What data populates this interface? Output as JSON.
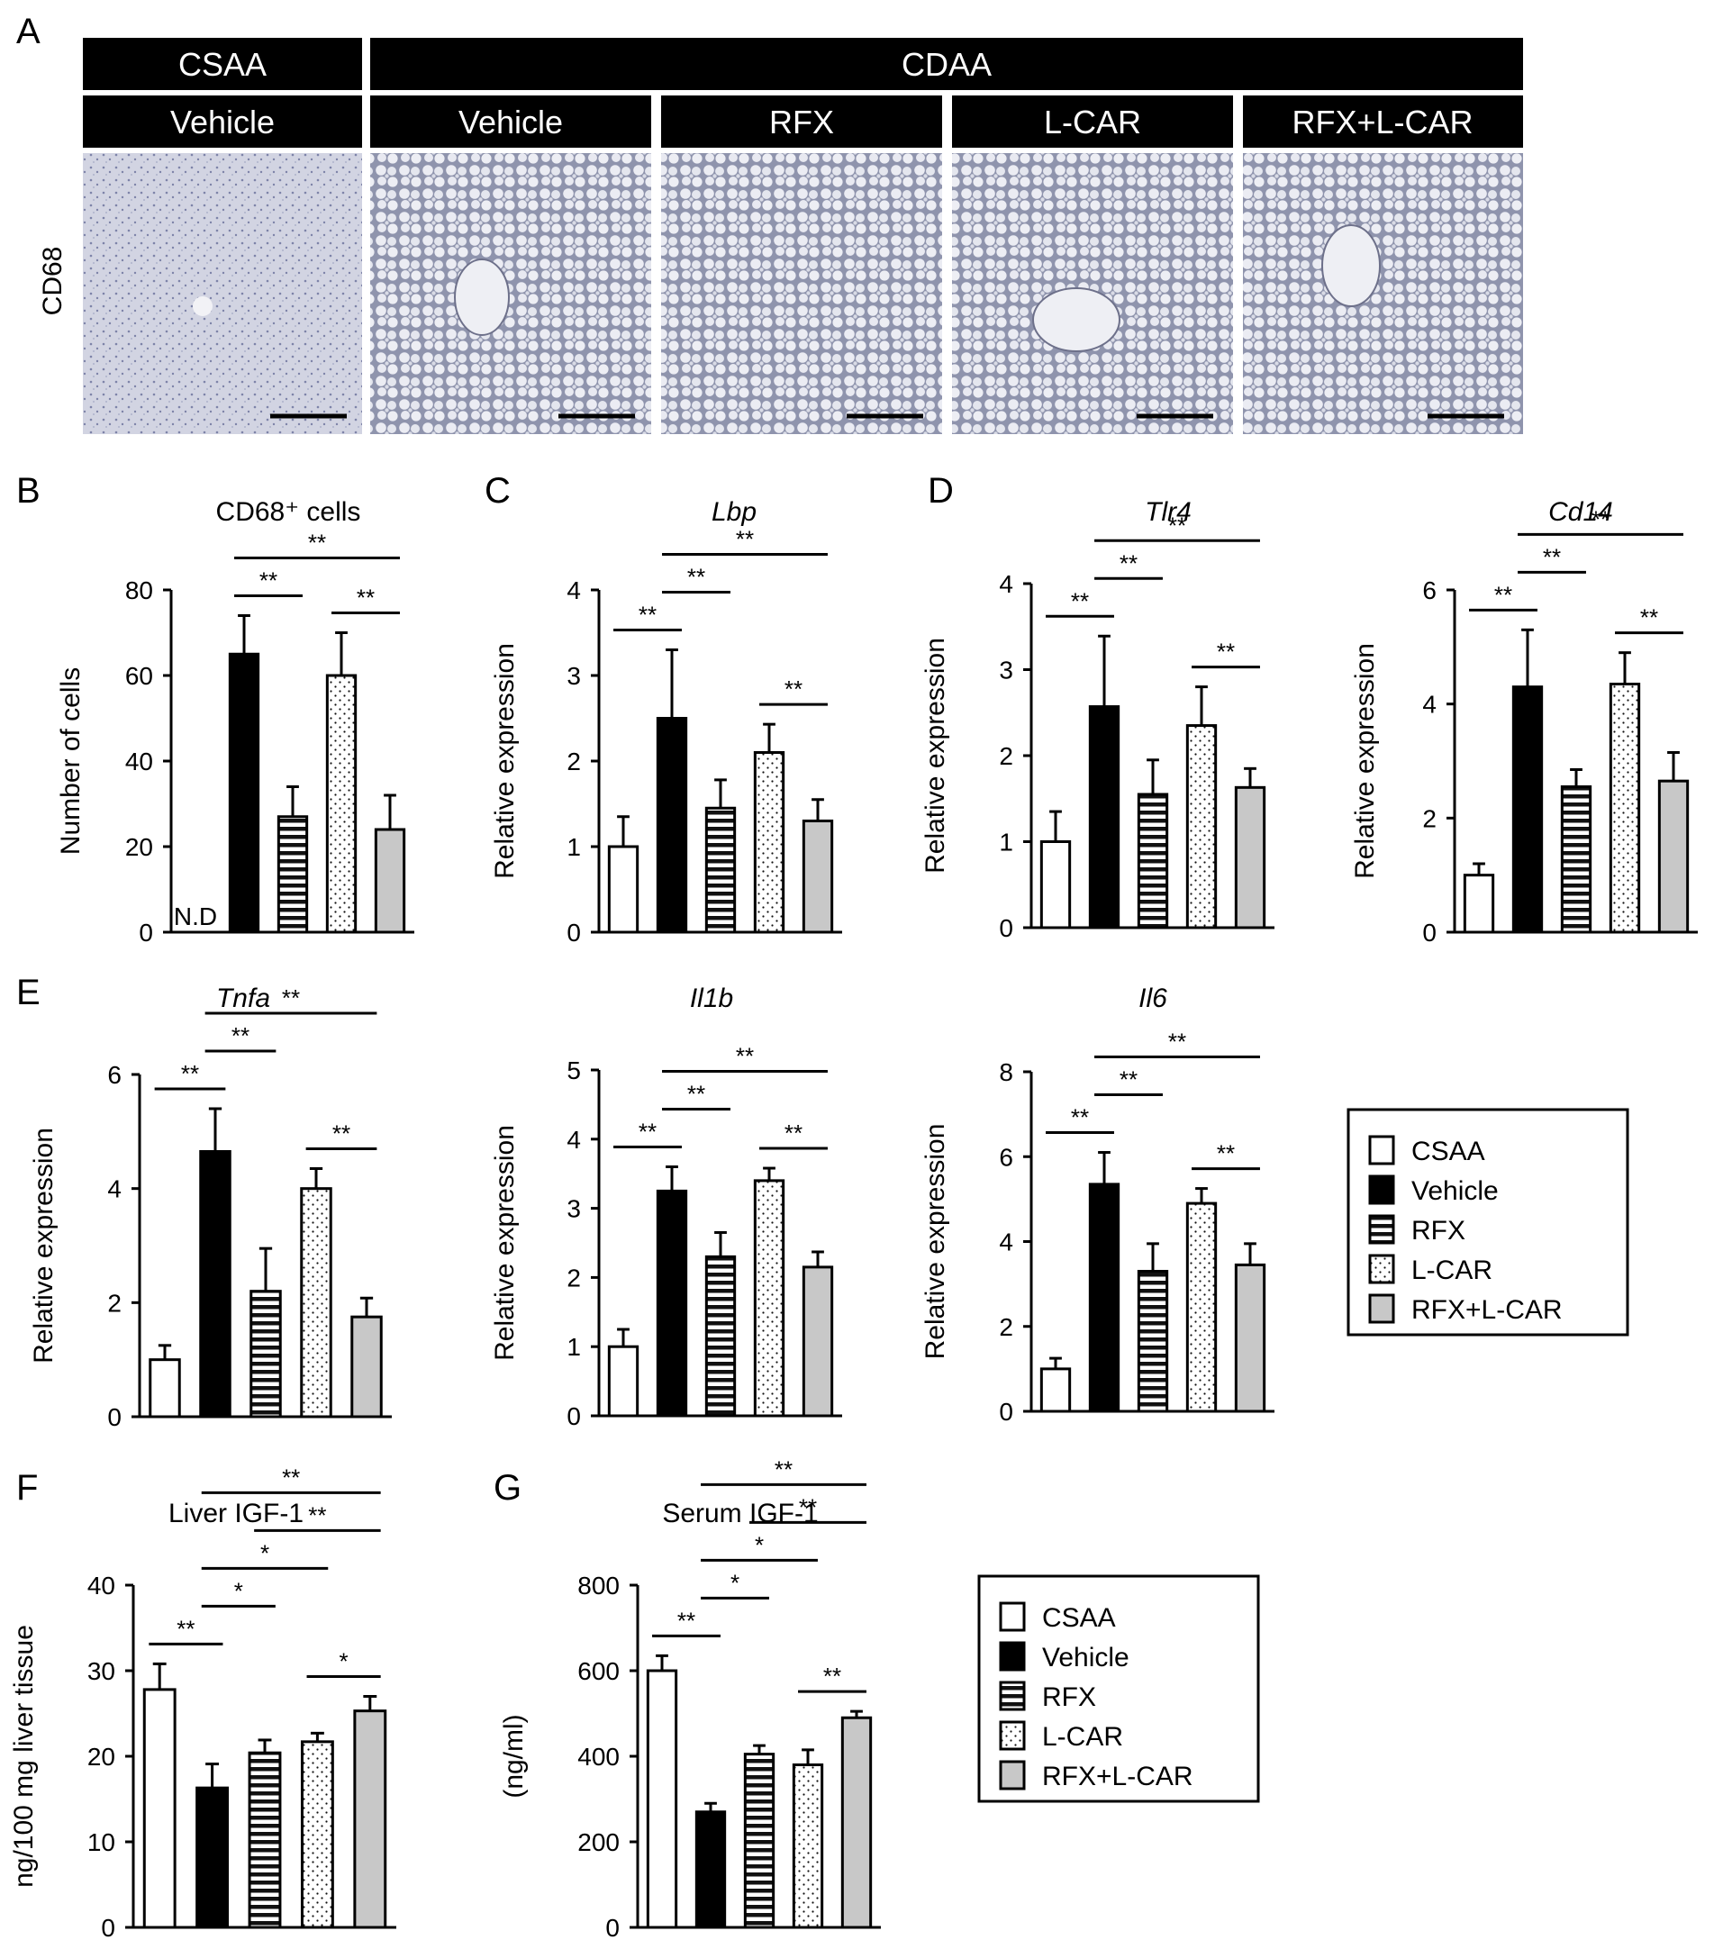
{
  "panel_letters": {
    "A": "A",
    "B": "B",
    "C": "C",
    "D": "D",
    "E": "E",
    "F": "F",
    "G": "G"
  },
  "panel_a": {
    "header_top": [
      "CSAA",
      "CDAA"
    ],
    "header_groups": [
      "Vehicle",
      "Vehicle",
      "RFX",
      "L-CAR",
      "RFX+L-CAR"
    ],
    "row_label": "CD68"
  },
  "legend": {
    "items": [
      {
        "label": "CSAA",
        "pattern": "white"
      },
      {
        "label": "Vehicle",
        "pattern": "black"
      },
      {
        "label": "RFX",
        "pattern": "hstripe"
      },
      {
        "label": "L-CAR",
        "pattern": "dots"
      },
      {
        "label": "RFX+L-CAR",
        "pattern": "gray"
      }
    ]
  },
  "chart_data": [
    {
      "id": "cd68",
      "type": "bar",
      "title": "CD68⁺ cells",
      "title_italic": false,
      "ylabel": "Number of cells",
      "ylim": [
        0,
        80
      ],
      "yticks": [
        0,
        20,
        40,
        60,
        80
      ],
      "categories": [
        "CSAA",
        "Vehicle",
        "RFX",
        "L-CAR",
        "RFX+L-CAR"
      ],
      "values": [
        null,
        65,
        27,
        60,
        24
      ],
      "errors": [
        null,
        9,
        7,
        10,
        8
      ],
      "annotations": [
        "N.D"
      ],
      "significance": [
        {
          "from": 1,
          "to": 2,
          "label": "**"
        },
        {
          "from": 1,
          "to": 4,
          "label": "**"
        },
        {
          "from": 3,
          "to": 4,
          "label": "**"
        }
      ]
    },
    {
      "id": "lbp",
      "type": "bar",
      "title": "Lbp",
      "title_italic": true,
      "ylabel": "Relative expression",
      "ylim": [
        0,
        4
      ],
      "yticks": [
        0,
        1,
        2,
        3,
        4
      ],
      "categories": [
        "CSAA",
        "Vehicle",
        "RFX",
        "L-CAR",
        "RFX+L-CAR"
      ],
      "values": [
        1.0,
        2.5,
        1.45,
        2.1,
        1.3
      ],
      "errors": [
        0.35,
        0.8,
        0.33,
        0.33,
        0.25
      ],
      "significance": [
        {
          "from": 0,
          "to": 1,
          "label": "**"
        },
        {
          "from": 1,
          "to": 2,
          "label": "**"
        },
        {
          "from": 1,
          "to": 4,
          "label": "**"
        },
        {
          "from": 3,
          "to": 4,
          "label": "**"
        }
      ]
    },
    {
      "id": "tlr4",
      "type": "bar",
      "title": "Tlr4",
      "title_italic": true,
      "ylabel": "Relative expression",
      "ylim": [
        0,
        4
      ],
      "yticks": [
        0,
        1,
        2,
        3,
        4
      ],
      "categories": [
        "CSAA",
        "Vehicle",
        "RFX",
        "L-CAR",
        "RFX+L-CAR"
      ],
      "values": [
        1.0,
        2.57,
        1.55,
        2.35,
        1.63
      ],
      "errors": [
        0.35,
        0.82,
        0.4,
        0.45,
        0.22
      ],
      "significance": [
        {
          "from": 0,
          "to": 1,
          "label": "**"
        },
        {
          "from": 1,
          "to": 2,
          "label": "**"
        },
        {
          "from": 1,
          "to": 4,
          "label": "**"
        },
        {
          "from": 3,
          "to": 4,
          "label": "**"
        }
      ]
    },
    {
      "id": "cd14",
      "type": "bar",
      "title": "Cd14",
      "title_italic": true,
      "ylabel": "Relative expression",
      "ylim": [
        0,
        6
      ],
      "yticks": [
        0,
        2,
        4,
        6
      ],
      "categories": [
        "CSAA",
        "Vehicle",
        "RFX",
        "L-CAR",
        "RFX+L-CAR"
      ],
      "values": [
        1.0,
        4.3,
        2.55,
        4.35,
        2.65
      ],
      "errors": [
        0.2,
        1.0,
        0.3,
        0.55,
        0.5
      ],
      "significance": [
        {
          "from": 0,
          "to": 1,
          "label": "**"
        },
        {
          "from": 1,
          "to": 2,
          "label": "**"
        },
        {
          "from": 1,
          "to": 4,
          "label": "**"
        },
        {
          "from": 3,
          "to": 4,
          "label": "**"
        }
      ]
    },
    {
      "id": "tnfa",
      "type": "bar",
      "title": "Tnfa",
      "title_italic": true,
      "ylabel": "Relative expression",
      "ylim": [
        0,
        6
      ],
      "yticks": [
        0,
        2,
        4,
        6
      ],
      "categories": [
        "CSAA",
        "Vehicle",
        "RFX",
        "L-CAR",
        "RFX+L-CAR"
      ],
      "values": [
        1.0,
        4.65,
        2.2,
        4.0,
        1.75
      ],
      "errors": [
        0.25,
        0.75,
        0.75,
        0.35,
        0.33
      ],
      "significance": [
        {
          "from": 0,
          "to": 1,
          "label": "**"
        },
        {
          "from": 1,
          "to": 2,
          "label": "**"
        },
        {
          "from": 1,
          "to": 4,
          "label": "**"
        },
        {
          "from": 3,
          "to": 4,
          "label": "**"
        }
      ]
    },
    {
      "id": "il1b",
      "type": "bar",
      "title": "Il1b",
      "title_italic": true,
      "ylabel": "Relative expression",
      "ylim": [
        0,
        5
      ],
      "yticks": [
        0,
        1,
        2,
        3,
        4,
        5
      ],
      "categories": [
        "CSAA",
        "Vehicle",
        "RFX",
        "L-CAR",
        "RFX+L-CAR"
      ],
      "values": [
        1.0,
        3.25,
        2.3,
        3.4,
        2.15
      ],
      "errors": [
        0.25,
        0.35,
        0.35,
        0.18,
        0.22
      ],
      "significance": [
        {
          "from": 0,
          "to": 1,
          "label": "**"
        },
        {
          "from": 1,
          "to": 2,
          "label": "**"
        },
        {
          "from": 1,
          "to": 4,
          "label": "**"
        },
        {
          "from": 3,
          "to": 4,
          "label": "**"
        }
      ]
    },
    {
      "id": "il6",
      "type": "bar",
      "title": "Il6",
      "title_italic": true,
      "ylabel": "Relative expression",
      "ylim": [
        0,
        8
      ],
      "yticks": [
        0,
        2,
        4,
        6,
        8
      ],
      "categories": [
        "CSAA",
        "Vehicle",
        "RFX",
        "L-CAR",
        "RFX+L-CAR"
      ],
      "values": [
        1.0,
        5.35,
        3.3,
        4.9,
        3.45
      ],
      "errors": [
        0.25,
        0.75,
        0.65,
        0.35,
        0.5
      ],
      "significance": [
        {
          "from": 0,
          "to": 1,
          "label": "**"
        },
        {
          "from": 1,
          "to": 2,
          "label": "**"
        },
        {
          "from": 1,
          "to": 4,
          "label": "**"
        },
        {
          "from": 3,
          "to": 4,
          "label": "**"
        }
      ]
    },
    {
      "id": "liver_igf1",
      "type": "bar",
      "title": "Liver IGF-1",
      "title_italic": false,
      "ylabel": "ng/100 mg liver tissue",
      "ylim": [
        0,
        40
      ],
      "yticks": [
        0,
        10,
        20,
        30,
        40
      ],
      "categories": [
        "CSAA",
        "Vehicle",
        "RFX",
        "L-CAR",
        "RFX+L-CAR"
      ],
      "values": [
        27.8,
        16.3,
        20.4,
        21.7,
        25.3
      ],
      "errors": [
        3.0,
        2.8,
        1.5,
        1.0,
        1.7
      ],
      "significance": [
        {
          "from": 0,
          "to": 1,
          "label": "**"
        },
        {
          "from": 1,
          "to": 2,
          "label": "*"
        },
        {
          "from": 1,
          "to": 3,
          "label": "*"
        },
        {
          "from": 1,
          "to": 4,
          "label": "**"
        },
        {
          "from": 2,
          "to": 4,
          "label": "**"
        },
        {
          "from": 3,
          "to": 4,
          "label": "*"
        }
      ]
    },
    {
      "id": "serum_igf1",
      "type": "bar",
      "title": "Serum IGF-1",
      "title_italic": false,
      "ylabel": "(ng/ml)",
      "ylim": [
        0,
        800
      ],
      "yticks": [
        0,
        200,
        400,
        600,
        800
      ],
      "categories": [
        "CSAA",
        "Vehicle",
        "RFX",
        "L-CAR",
        "RFX+L-CAR"
      ],
      "values": [
        600,
        270,
        405,
        380,
        490
      ],
      "errors": [
        35,
        20,
        20,
        35,
        15
      ],
      "significance": [
        {
          "from": 0,
          "to": 1,
          "label": "**"
        },
        {
          "from": 1,
          "to": 2,
          "label": "*"
        },
        {
          "from": 1,
          "to": 3,
          "label": "*"
        },
        {
          "from": 1,
          "to": 4,
          "label": "**"
        },
        {
          "from": 2,
          "to": 4,
          "label": "**"
        },
        {
          "from": 3,
          "to": 4,
          "label": "**"
        }
      ]
    }
  ]
}
